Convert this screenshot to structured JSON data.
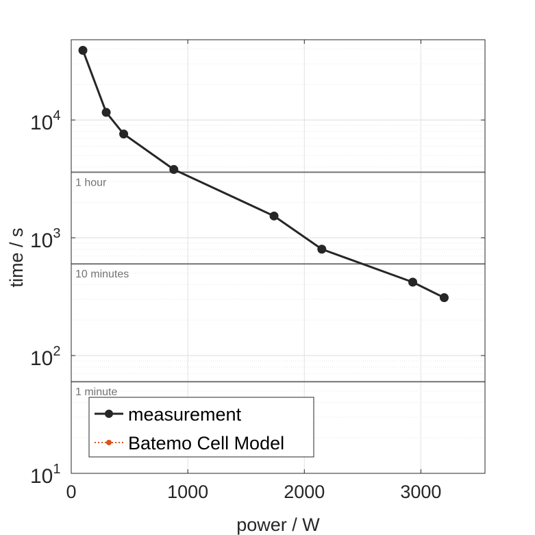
{
  "chart_data": {
    "type": "line",
    "xlabel": "power / W",
    "ylabel": "time / s",
    "xlim": [
      0,
      3550
    ],
    "ylim": [
      10,
      48000
    ],
    "yscale": "log",
    "grid": true,
    "xticks": [
      0,
      1000,
      2000,
      3000
    ],
    "xtick_labels": [
      "0",
      "1000",
      "2000",
      "3000"
    ],
    "yticks": [
      10,
      100,
      1000,
      10000
    ],
    "ytick_labels": [
      {
        "base": "10",
        "exp": "1"
      },
      {
        "base": "10",
        "exp": "2"
      },
      {
        "base": "10",
        "exp": "3"
      },
      {
        "base": "10",
        "exp": "4"
      }
    ],
    "series": [
      {
        "name": "measurement",
        "color": "#262626",
        "marker": "circle",
        "x": [
          100,
          300,
          450,
          880,
          1740,
          2150,
          2930,
          3200
        ],
        "y": [
          39000,
          11600,
          7600,
          3800,
          1530,
          800,
          420,
          310
        ]
      },
      {
        "name": "Batemo Cell Model",
        "color": "#d95319",
        "marker": "circle",
        "linestyle": "dotted",
        "x": [],
        "y": []
      }
    ],
    "reference_lines": [
      {
        "y": 3600,
        "label": "1 hour"
      },
      {
        "y": 600,
        "label": "10 minutes"
      },
      {
        "y": 60,
        "label": "1 minute"
      }
    ],
    "legend_position": "bottom-left"
  }
}
